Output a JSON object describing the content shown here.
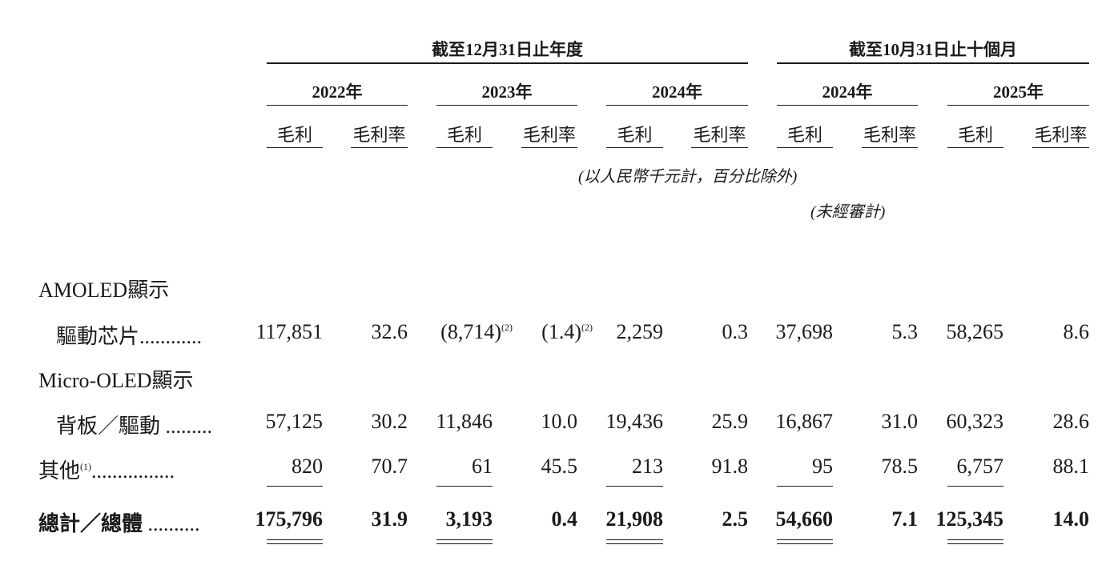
{
  "header": {
    "group1": "截至12月31日止年度",
    "group2": "截至10月31日止十個月",
    "years": [
      "2022年",
      "2023年",
      "2024年",
      "2024年",
      "2025年"
    ],
    "col_gp": "毛利",
    "col_gm": "毛利率",
    "unit_note": "(以人民幣千元計，百分比除外)",
    "unaudited_note": "(未經審計)"
  },
  "rows": {
    "amoled": {
      "label1": "AMOLED顯示",
      "label2": "驅動芯片",
      "dots": "............",
      "values": [
        "117,851",
        "32.6",
        "(8,714)",
        "(1.4)",
        "2,259",
        "0.3",
        "37,698",
        "5.3",
        "58,265",
        "8.6"
      ],
      "footnote": "(2)"
    },
    "micro": {
      "label1": "Micro-OLED顯示",
      "label2": "背板／驅動",
      "dots": ".........",
      "values": [
        "57,125",
        "30.2",
        "11,846",
        "10.0",
        "19,436",
        "25.9",
        "16,867",
        "31.0",
        "60,323",
        "28.6"
      ]
    },
    "other": {
      "label": "其他",
      "footnote": "(1)",
      "dots": "................",
      "values": [
        "820",
        "70.7",
        "61",
        "45.5",
        "213",
        "91.8",
        "95",
        "78.5",
        "6,757",
        "88.1"
      ]
    },
    "total": {
      "label": "總計／總體",
      "dots": "..........",
      "values": [
        "175,796",
        "31.9",
        "3,193",
        "0.4",
        "21,908",
        "2.5",
        "54,660",
        "7.1",
        "125,345",
        "14.0"
      ]
    }
  }
}
